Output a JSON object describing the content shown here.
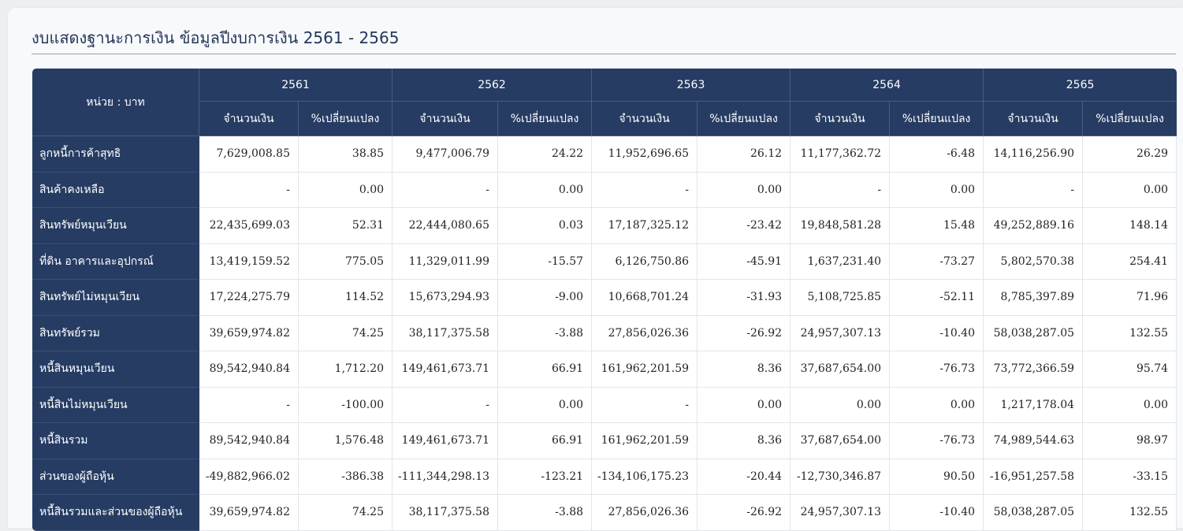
{
  "title": "งบแสดงฐานะการเงิน ข้อมูลปีงบการเงิน 2561 - 2565",
  "unit_label": "หน่วย : บาท",
  "years": [
    "2561",
    "2562",
    "2563",
    "2564",
    "2565"
  ],
  "sub_headers": {
    "amount": "จำนวนเงิน",
    "change": "%เปลี่ยนแปลง"
  },
  "rows": [
    {
      "label": "ลูกหนี้การค้าสุทธิ",
      "cells": [
        "7,629,008.85",
        "38.85",
        "9,477,006.79",
        "24.22",
        "11,952,696.65",
        "26.12",
        "11,177,362.72",
        "-6.48",
        "14,116,256.90",
        "26.29"
      ]
    },
    {
      "label": "สินค้าคงเหลือ",
      "cells": [
        "-",
        "0.00",
        "-",
        "0.00",
        "-",
        "0.00",
        "-",
        "0.00",
        "-",
        "0.00"
      ]
    },
    {
      "label": "สินทรัพย์หมุนเวียน",
      "cells": [
        "22,435,699.03",
        "52.31",
        "22,444,080.65",
        "0.03",
        "17,187,325.12",
        "-23.42",
        "19,848,581.28",
        "15.48",
        "49,252,889.16",
        "148.14"
      ]
    },
    {
      "label": "ที่ดิน อาคารและอุปกรณ์",
      "cells": [
        "13,419,159.52",
        "775.05",
        "11,329,011.99",
        "-15.57",
        "6,126,750.86",
        "-45.91",
        "1,637,231.40",
        "-73.27",
        "5,802,570.38",
        "254.41"
      ]
    },
    {
      "label": "สินทรัพย์ไม่หมุนเวียน",
      "cells": [
        "17,224,275.79",
        "114.52",
        "15,673,294.93",
        "-9.00",
        "10,668,701.24",
        "-31.93",
        "5,108,725.85",
        "-52.11",
        "8,785,397.89",
        "71.96"
      ]
    },
    {
      "label": "สินทรัพย์รวม",
      "cells": [
        "39,659,974.82",
        "74.25",
        "38,117,375.58",
        "-3.88",
        "27,856,026.36",
        "-26.92",
        "24,957,307.13",
        "-10.40",
        "58,038,287.05",
        "132.55"
      ]
    },
    {
      "label": "หนี้สินหมุนเวียน",
      "cells": [
        "89,542,940.84",
        "1,712.20",
        "149,461,673.71",
        "66.91",
        "161,962,201.59",
        "8.36",
        "37,687,654.00",
        "-76.73",
        "73,772,366.59",
        "95.74"
      ]
    },
    {
      "label": "หนี้สินไม่หมุนเวียน",
      "cells": [
        "-",
        "-100.00",
        "-",
        "0.00",
        "-",
        "0.00",
        "0.00",
        "0.00",
        "1,217,178.04",
        "0.00"
      ]
    },
    {
      "label": "หนี้สินรวม",
      "cells": [
        "89,542,940.84",
        "1,576.48",
        "149,461,673.71",
        "66.91",
        "161,962,201.59",
        "8.36",
        "37,687,654.00",
        "-76.73",
        "74,989,544.63",
        "98.97"
      ]
    },
    {
      "label": "ส่วนของผู้ถือหุ้น",
      "cells": [
        "-49,882,966.02",
        "-386.38",
        "-111,344,298.13",
        "-123.21",
        "-134,106,175.23",
        "-20.44",
        "-12,730,346.87",
        "90.50",
        "-16,951,257.58",
        "-33.15"
      ]
    },
    {
      "label": "หนี้สินรวมและส่วนของผู้ถือหุ้น",
      "cells": [
        "39,659,974.82",
        "74.25",
        "38,117,375.58",
        "-3.88",
        "27,856,026.36",
        "-26.92",
        "24,957,307.13",
        "-10.40",
        "58,038,287.05",
        "132.55"
      ]
    }
  ],
  "colors": {
    "header_bg": "#263c63",
    "title": "#24375a"
  }
}
